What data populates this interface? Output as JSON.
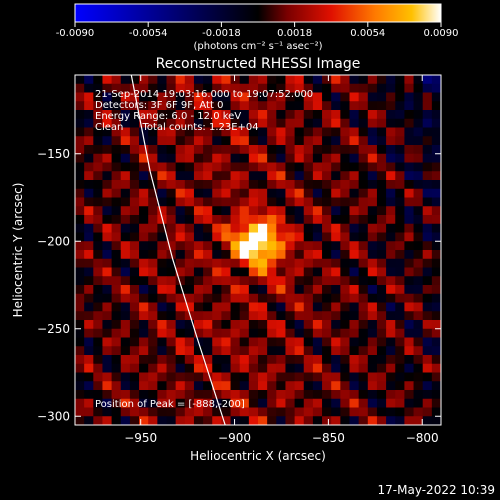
{
  "colorbar": {
    "min": -0.009,
    "max": 0.009,
    "ticks": [
      "-0.0090",
      "-0.0054",
      "-0.0018",
      "0.0018",
      "0.0054",
      "0.0090"
    ],
    "unit_label": "(photons cm⁻² s⁻¹ asec⁻²)",
    "colormap": [
      "#0000ff",
      "#000000",
      "#7a0000",
      "#e01000",
      "#ff7a00",
      "#ffc000",
      "#ffffff"
    ]
  },
  "title": "Reconstructed RHESSI Image",
  "info": {
    "line1": "21-Sep-2014 19:03:16.000 to 19:07:52.000",
    "line2": "Detectors: 3F 6F 9F, Att 0",
    "line3": "Energy Range: 6.0 - 12.0 keV",
    "line4": "Clean      Total counts: 1.23E+04"
  },
  "peak_label": "Position of Peak = [-888,-200]",
  "footer_date": "17-May-2022 10:39",
  "chart_data": {
    "type": "heatmap",
    "xlabel": "Heliocentric X (arcsec)",
    "ylabel": "Heliocentric Y (arcsec)",
    "xlim": [
      -985,
      -790
    ],
    "ylim": [
      -305,
      -105
    ],
    "xticks": [
      -950,
      -900,
      -850,
      -800
    ],
    "yticks": [
      -150,
      -200,
      -250,
      -300
    ],
    "peak": {
      "x": -888,
      "y": -200,
      "value": 0.009
    },
    "limb_curve": [
      [
        -955,
        -105
      ],
      [
        -945,
        -160
      ],
      [
        -933,
        -210
      ],
      [
        -920,
        -255
      ],
      [
        -905,
        -305
      ]
    ],
    "limb_color": "#ffffff"
  }
}
